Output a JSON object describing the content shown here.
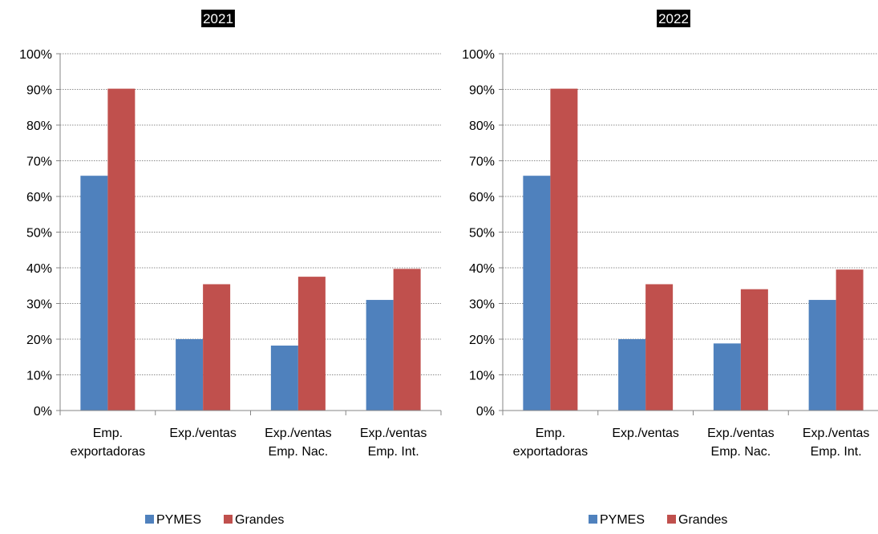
{
  "chart_data": [
    {
      "type": "bar",
      "title": "2021",
      "categories": [
        [
          "Emp.",
          "exportadoras"
        ],
        [
          "Exp./ventas"
        ],
        [
          "Exp./ventas",
          "Emp. Nac."
        ],
        [
          "Exp./ventas",
          "Emp. Int."
        ]
      ],
      "series": [
        {
          "name": "PYMES",
          "color": "#4f81bd",
          "values": [
            65.8,
            20.0,
            18.2,
            31.0
          ]
        },
        {
          "name": "Grandes",
          "color": "#c0504d",
          "values": [
            90.2,
            35.4,
            37.5,
            39.7
          ]
        }
      ],
      "ylim": [
        0,
        100
      ],
      "yticks": [
        "0%",
        "10%",
        "20%",
        "30%",
        "40%",
        "50%",
        "60%",
        "70%",
        "80%",
        "90%",
        "100%"
      ],
      "grid": true,
      "legend": "bottom"
    },
    {
      "type": "bar",
      "title": "2022",
      "categories": [
        [
          "Emp.",
          "exportadoras"
        ],
        [
          "Exp./ventas"
        ],
        [
          "Exp./ventas",
          "Emp. Nac."
        ],
        [
          "Exp./ventas",
          "Emp. Int."
        ]
      ],
      "series": [
        {
          "name": "PYMES",
          "color": "#4f81bd",
          "values": [
            65.8,
            20.0,
            18.8,
            31.0
          ]
        },
        {
          "name": "Grandes",
          "color": "#c0504d",
          "values": [
            90.2,
            35.4,
            34.0,
            39.5
          ]
        }
      ],
      "ylim": [
        0,
        100
      ],
      "yticks": [
        "0%",
        "10%",
        "20%",
        "30%",
        "40%",
        "50%",
        "60%",
        "70%",
        "80%",
        "90%",
        "100%"
      ],
      "grid": true,
      "legend": "bottom"
    }
  ]
}
